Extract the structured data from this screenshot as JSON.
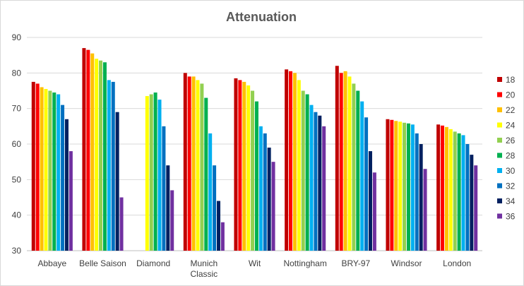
{
  "chart_data": {
    "type": "bar",
    "title": "Attenuation",
    "xlabel": "",
    "ylabel": "",
    "ylim": [
      30,
      90
    ],
    "yticks": [
      30,
      40,
      50,
      60,
      70,
      80,
      90
    ],
    "grid": true,
    "legend_position": "right",
    "categories": [
      "Abbaye",
      "Belle Saison",
      "Diamond",
      "Munich Classic",
      "Wit",
      "Nottingham",
      "BRY-97",
      "Windsor",
      "London"
    ],
    "category_labels": [
      [
        "Abbaye"
      ],
      [
        "Belle Saison"
      ],
      [
        "Diamond"
      ],
      [
        "Munich",
        "Classic"
      ],
      [
        "Wit"
      ],
      [
        "Nottingham"
      ],
      [
        "BRY-97"
      ],
      [
        "Windsor"
      ],
      [
        "London"
      ]
    ],
    "series": [
      {
        "name": "18",
        "color": "#c00000",
        "values": [
          77.5,
          87,
          null,
          80,
          78.5,
          81,
          82,
          67,
          65.5
        ]
      },
      {
        "name": "20",
        "color": "#ff0000",
        "values": [
          77,
          86.5,
          null,
          79,
          78,
          80.5,
          80,
          66.8,
          65.2
        ]
      },
      {
        "name": "22",
        "color": "#ffc000",
        "values": [
          76,
          85.5,
          null,
          79,
          77.5,
          80,
          80.5,
          66.5,
          64.8
        ]
      },
      {
        "name": "24",
        "color": "#ffff00",
        "values": [
          75.5,
          84,
          73.5,
          78,
          76.5,
          78,
          79,
          66.3,
          64.2
        ]
      },
      {
        "name": "26",
        "color": "#92d050",
        "values": [
          75,
          83.5,
          74,
          77,
          75,
          75,
          77,
          66,
          63.5
        ]
      },
      {
        "name": "28",
        "color": "#00b050",
        "values": [
          74.5,
          83,
          74.5,
          73,
          72,
          74,
          75,
          65.8,
          63
        ]
      },
      {
        "name": "30",
        "color": "#00b0f0",
        "values": [
          74,
          78,
          72.5,
          63,
          65,
          71,
          72,
          65.5,
          62.5
        ]
      },
      {
        "name": "32",
        "color": "#0070c0",
        "values": [
          71,
          77.5,
          65,
          54,
          63,
          69,
          67.5,
          63,
          60
        ]
      },
      {
        "name": "34",
        "color": "#002060",
        "values": [
          67,
          69,
          54,
          44,
          59,
          68,
          58,
          60,
          57
        ]
      },
      {
        "name": "36",
        "color": "#7030a0",
        "values": [
          58,
          45,
          47,
          38,
          55,
          65,
          52,
          53,
          54
        ]
      }
    ]
  }
}
